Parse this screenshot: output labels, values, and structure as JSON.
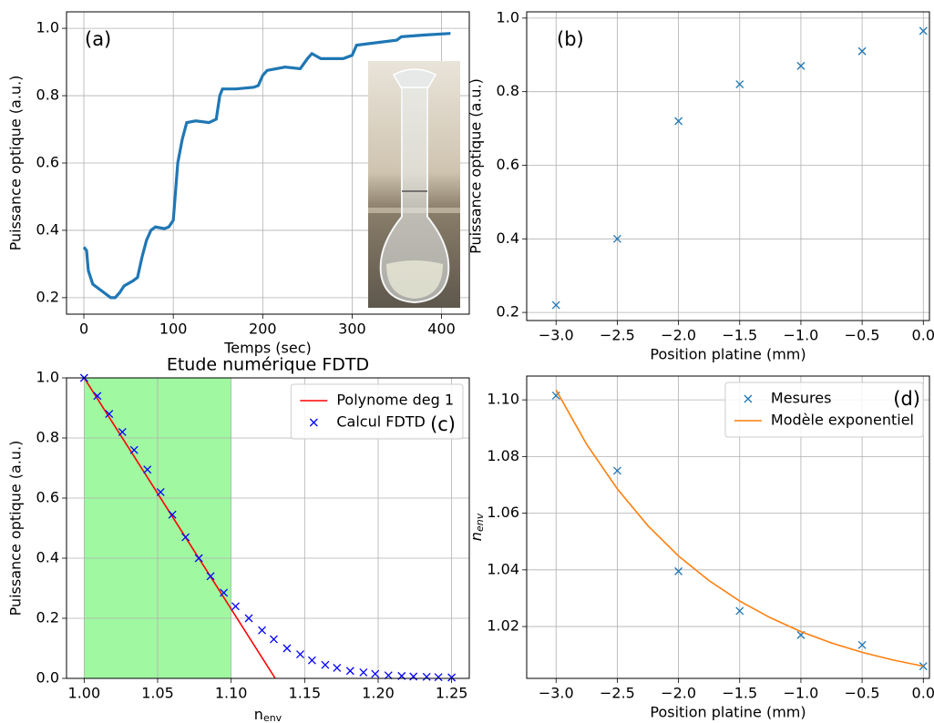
{
  "chart_data": [
    {
      "type": "line",
      "label": "(a)",
      "xlabel": "Temps (sec)",
      "ylabel": "Puissance optique (a.u.)",
      "xlim": [
        -19.4,
        431
      ],
      "ylim": [
        0.151,
        1.049
      ],
      "xticks": [
        0,
        100,
        200,
        300,
        400
      ],
      "yticks": [
        0.2,
        0.4,
        0.6,
        0.8,
        {
          "value": 1.0,
          "label": "1.0"
        }
      ],
      "grid": true,
      "series": [
        {
          "type": "line",
          "color": "#1f77b4",
          "x": [
            0,
            3,
            5,
            10,
            20,
            30,
            35,
            40,
            45,
            55,
            60,
            65,
            70,
            75,
            80,
            90,
            95,
            100,
            105,
            110,
            115,
            125,
            140,
            148,
            152,
            155,
            170,
            190,
            195,
            200,
            205,
            225,
            242,
            250,
            255,
            265,
            290,
            300,
            305,
            320,
            350,
            355,
            380,
            410
          ],
          "y": [
            0.35,
            0.34,
            0.28,
            0.24,
            0.22,
            0.2,
            0.2,
            0.215,
            0.235,
            0.25,
            0.26,
            0.32,
            0.37,
            0.4,
            0.41,
            0.405,
            0.41,
            0.43,
            0.6,
            0.67,
            0.72,
            0.725,
            0.72,
            0.73,
            0.8,
            0.82,
            0.82,
            0.825,
            0.83,
            0.86,
            0.875,
            0.885,
            0.88,
            0.91,
            0.925,
            0.91,
            0.91,
            0.92,
            0.95,
            0.955,
            0.965,
            0.975,
            0.98,
            0.985
          ]
        }
      ]
    },
    {
      "type": "scatter",
      "label": "(b)",
      "xlabel": "Position platine (mm)",
      "ylabel": "Puissance optique (a.u.)",
      "xlim": [
        -3.24,
        0.05
      ],
      "ylim": [
        0.178,
        1.017
      ],
      "xticks": [
        {
          "value": -3.0,
          "label": "−3.0"
        },
        {
          "value": -2.5,
          "label": "−2.5"
        },
        {
          "value": -2.0,
          "label": "−2.0"
        },
        {
          "value": -1.5,
          "label": "−1.5"
        },
        {
          "value": -1.0,
          "label": "−1.0"
        },
        {
          "value": -0.5,
          "label": "−0.5"
        },
        {
          "value": 0.0,
          "label": "0.0"
        }
      ],
      "yticks": [
        0.2,
        0.4,
        0.6,
        0.8,
        {
          "value": 1.0,
          "label": "1.0"
        }
      ],
      "grid": true,
      "series": [
        {
          "type": "scatter",
          "color": "#1f77b4",
          "x": [
            -3,
            -2.5,
            -2,
            -1.5,
            -1,
            -0.5,
            0
          ],
          "y": [
            0.22,
            0.4,
            0.72,
            0.82,
            0.87,
            0.91,
            0.965
          ]
        }
      ]
    },
    {
      "type": "combo",
      "title": "Etude numérique FDTD",
      "label": "(c)",
      "xlabel": "n",
      "xlabel_subscript": "env",
      "ylabel": "Puissance optique (a.u.)",
      "xlim": [
        0.988,
        1.262
      ],
      "ylim": [
        0,
        1
      ],
      "xticks": [
        {
          "value": 1.0,
          "label": "1.00"
        },
        1.05,
        {
          "value": 1.1,
          "label": "1.10"
        },
        1.15,
        {
          "value": 1.2,
          "label": "1.20"
        },
        1.25
      ],
      "yticks": [
        {
          "value": 0,
          "label": "0.0"
        },
        0.2,
        0.4,
        0.6,
        0.8,
        {
          "value": 1.0,
          "label": "1.0"
        }
      ],
      "grid": true,
      "shade": {
        "x": [
          1.0,
          1.1
        ],
        "color": "#a0f8a0"
      },
      "legend": "upper right",
      "series": [
        {
          "name": "Polynome deg 1",
          "type": "line",
          "color": "#ff0000",
          "x": [
            1.0,
            1.13
          ],
          "y": [
            1.0,
            0.0
          ]
        },
        {
          "name": "Calcul FDTD",
          "type": "scatter",
          "color": "#0000ff",
          "x": [
            1.0,
            1.009,
            1.017,
            1.026,
            1.034,
            1.043,
            1.052,
            1.06,
            1.069,
            1.078,
            1.086,
            1.095,
            1.103,
            1.112,
            1.121,
            1.129,
            1.138,
            1.147,
            1.155,
            1.164,
            1.172,
            1.181,
            1.19,
            1.198,
            1.207,
            1.216,
            1.224,
            1.233,
            1.241,
            1.25
          ],
          "y": [
            1.0,
            0.94,
            0.88,
            0.82,
            0.76,
            0.695,
            0.62,
            0.545,
            0.47,
            0.4,
            0.34,
            0.285,
            0.24,
            0.2,
            0.16,
            0.13,
            0.1,
            0.08,
            0.06,
            0.045,
            0.035,
            0.025,
            0.02,
            0.015,
            0.01,
            0.008,
            0.006,
            0.005,
            0.004,
            0.003
          ]
        }
      ]
    },
    {
      "type": "combo",
      "label": "(d)",
      "xlabel": "Position platine (mm)",
      "ylabel": "n",
      "ylabel_subscript": "env",
      "xlim": [
        -3.24,
        0.05
      ],
      "ylim": [
        1.0017,
        1.1084
      ],
      "xticks": [
        {
          "value": -3.0,
          "label": "−3.0"
        },
        {
          "value": -2.5,
          "label": "−2.5"
        },
        {
          "value": -2.0,
          "label": "−2.0"
        },
        {
          "value": -1.5,
          "label": "−1.5"
        },
        {
          "value": -1.0,
          "label": "−1.0"
        },
        {
          "value": -0.5,
          "label": "−0.5"
        },
        {
          "value": 0.0,
          "label": "0.0"
        }
      ],
      "yticks": [
        1.02,
        1.04,
        1.06,
        1.08,
        {
          "value": 1.1,
          "label": "1.10"
        }
      ],
      "grid": true,
      "legend": "upper right",
      "series": [
        {
          "name": "Mesures",
          "type": "scatter",
          "color": "#1f77b4",
          "x": [
            -3,
            -2.5,
            -2,
            -1.5,
            -1,
            -0.5,
            0
          ],
          "y": [
            1.1015,
            1.075,
            1.0395,
            1.0255,
            1.017,
            1.0135,
            1.006
          ]
        },
        {
          "name": "Modèle exponentiel",
          "type": "line",
          "color": "#ff7f0e",
          "x": [
            -3,
            -2.75,
            -2.5,
            -2.25,
            -2,
            -1.75,
            -1.5,
            -1.25,
            -1,
            -0.75,
            -0.5,
            -0.25,
            0
          ],
          "y": [
            1.1035,
            1.0843,
            1.0686,
            1.0556,
            1.0449,
            1.0362,
            1.029,
            1.0231,
            1.0182,
            1.0142,
            1.0109,
            1.0082,
            1.006
          ]
        }
      ]
    }
  ]
}
